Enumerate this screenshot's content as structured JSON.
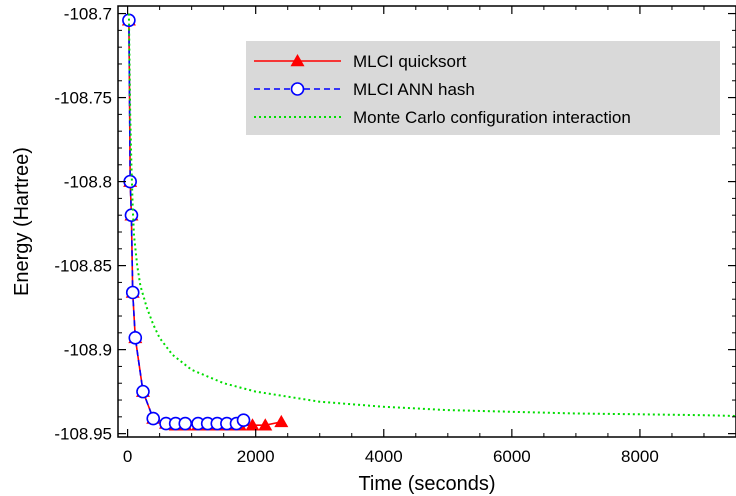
{
  "chart_data": {
    "type": "line",
    "xlabel": "Time (seconds)",
    "ylabel": "Energy (Hartree)",
    "xlim": [
      -150,
      9500
    ],
    "ylim": [
      -108.952,
      -108.6955
    ],
    "x_ticks": [
      0,
      2000,
      4000,
      6000,
      8000
    ],
    "x_tick_labels": [
      "0",
      "2000",
      "4000",
      "6000",
      "8000"
    ],
    "y_ticks": [
      -108.7,
      -108.75,
      -108.8,
      -108.85,
      -108.9,
      -108.95
    ],
    "y_tick_labels": [
      "-108.7",
      "-108.75",
      "-108.8",
      "-108.85",
      "-108.9",
      "-108.95"
    ],
    "legend_position": "top-right",
    "legend_background": "#d9d9d9",
    "series": [
      {
        "name": "MLCI quicksort",
        "style": "solid",
        "marker": "filled-triangle",
        "color": "#ff0000",
        "x": [
          20,
          40,
          60,
          80,
          120,
          240,
          400,
          600,
          750,
          900,
          1100,
          1300,
          1450,
          1600,
          1750,
          1950,
          2150,
          2400
        ],
        "y": [
          -108.704,
          -108.8,
          -108.82,
          -108.866,
          -108.893,
          -108.925,
          -108.941,
          -108.944,
          -108.945,
          -108.945,
          -108.945,
          -108.945,
          -108.945,
          -108.945,
          -108.945,
          -108.945,
          -108.945,
          -108.943
        ]
      },
      {
        "name": "MLCI ANN hash",
        "style": "dashed",
        "marker": "open-circle",
        "color": "#0000ff",
        "x": [
          20,
          40,
          60,
          80,
          120,
          240,
          400,
          600,
          750,
          900,
          1100,
          1250,
          1400,
          1550,
          1700,
          1810
        ],
        "y": [
          -108.704,
          -108.8,
          -108.82,
          -108.866,
          -108.893,
          -108.925,
          -108.941,
          -108.944,
          -108.944,
          -108.944,
          -108.944,
          -108.944,
          -108.944,
          -108.944,
          -108.944,
          -108.942
        ]
      },
      {
        "name": "Monte Carlo configuration interaction",
        "style": "dotted",
        "marker": "none",
        "color": "#00dd00",
        "x": [
          20,
          40,
          60,
          80,
          100,
          150,
          200,
          300,
          400,
          500,
          700,
          1000,
          1500,
          2000,
          3000,
          4000,
          5000,
          6000,
          7000,
          8000,
          9000,
          9500
        ],
        "y": [
          -108.7,
          -108.76,
          -108.79,
          -108.815,
          -108.832,
          -108.85,
          -108.862,
          -108.875,
          -108.885,
          -108.893,
          -108.903,
          -108.912,
          -108.92,
          -108.925,
          -108.931,
          -108.934,
          -108.936,
          -108.937,
          -108.938,
          -108.9385,
          -108.939,
          -108.9395
        ]
      }
    ]
  }
}
